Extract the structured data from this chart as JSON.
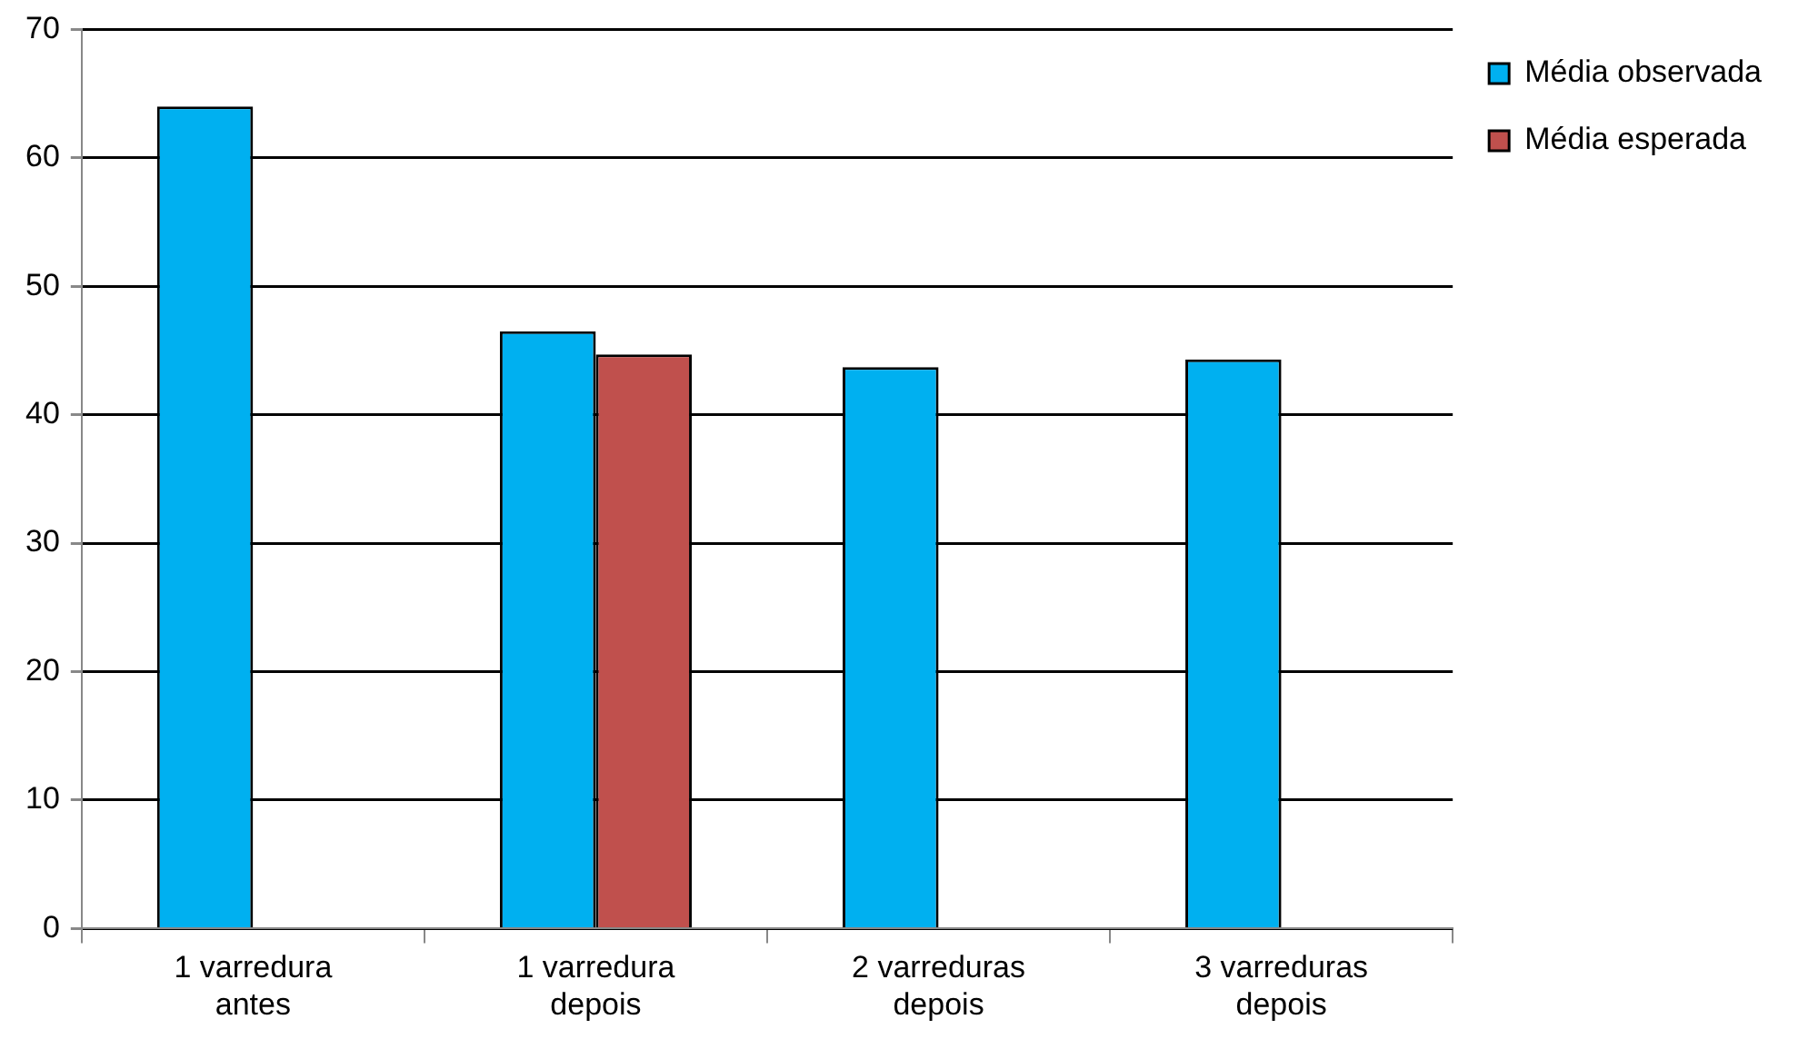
{
  "chart_data": {
    "type": "bar",
    "categories": [
      "1 varredura antes",
      "1 varredura depois",
      "2 varreduras depois",
      "3 varreduras depois"
    ],
    "series": [
      {
        "name": "Média observada",
        "color": "#00b0f0",
        "values": [
          64.0,
          46.5,
          43.7,
          44.3
        ]
      },
      {
        "name": "Média esperada",
        "color": "#c0504d",
        "values": [
          null,
          44.7,
          null,
          null
        ]
      }
    ],
    "ylim": [
      0,
      70
    ],
    "yticks": [
      0,
      10,
      20,
      30,
      40,
      50,
      60,
      70
    ],
    "grid": "y",
    "legend": "right"
  }
}
